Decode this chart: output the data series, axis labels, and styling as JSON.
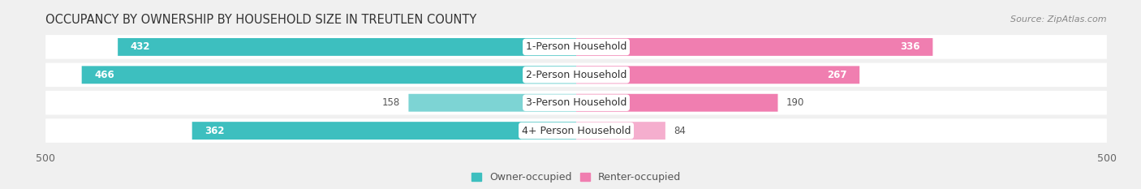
{
  "title": "OCCUPANCY BY OWNERSHIP BY HOUSEHOLD SIZE IN TREUTLEN COUNTY",
  "source": "Source: ZipAtlas.com",
  "categories": [
    "1-Person Household",
    "2-Person Household",
    "3-Person Household",
    "4+ Person Household"
  ],
  "owner_values": [
    432,
    466,
    158,
    362
  ],
  "renter_values": [
    336,
    267,
    190,
    84
  ],
  "owner_color_strong": "#3DBFBF",
  "owner_color_weak": "#7DD4D4",
  "renter_color_strong": "#F07EB0",
  "renter_color_weak": "#F5AECE",
  "axis_limit": 500,
  "bar_height": 0.62,
  "background_color": "#f0f0f0",
  "bar_bg_color": "#e0e0e0",
  "row_bg_color": "#ffffff",
  "title_fontsize": 10.5,
  "label_fontsize": 9,
  "value_fontsize": 8.5,
  "tick_fontsize": 9,
  "source_fontsize": 8
}
